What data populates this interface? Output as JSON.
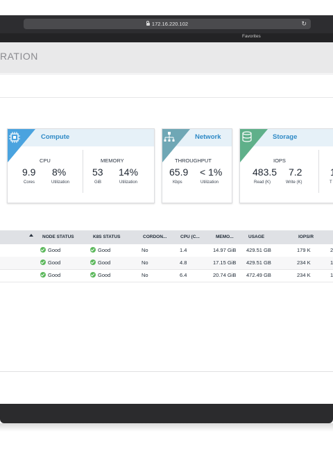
{
  "browser": {
    "url": "172.16.220.102",
    "favorites_label": "Favorites"
  },
  "app": {
    "title": "RATION"
  },
  "cards": {
    "compute": {
      "title": "Compute",
      "cpu": {
        "label": "CPU",
        "cores_value": "9.9",
        "cores_unit": "Cores",
        "util_value": "8%",
        "util_unit": "Utilization"
      },
      "memory": {
        "label": "MEMORY",
        "gib_value": "53",
        "gib_unit": "GiB",
        "util_value": "14%",
        "util_unit": "Utilization"
      }
    },
    "network": {
      "title": "Network",
      "throughput": {
        "label": "THROUGHPUT",
        "kbps_value": "65.9",
        "kbps_unit": "Kbps",
        "util_value": "< 1%",
        "util_unit": "Utilization"
      }
    },
    "storage": {
      "title": "Storage",
      "iops": {
        "label": "IOPS",
        "read_value": "483.5",
        "read_unit": "Read (K)",
        "write_value": "7.2",
        "write_unit": "Write (K)"
      },
      "extra_value": "1",
      "extra_unit": "T"
    }
  },
  "table": {
    "headers": [
      "NODE STATUS",
      "K8S STATUS",
      "CORDON...",
      "CPU (C...",
      "MEMO...",
      "USAGE",
      "IOPS/R",
      ""
    ],
    "rows": [
      {
        "node_status": "Good",
        "k8s_status": "Good",
        "cordoned": "No",
        "cpu": "1.4",
        "memory": "14.97 GiB",
        "usage": "429.51 GB",
        "iops_r": "179 K",
        "extra": "2"
      },
      {
        "node_status": "Good",
        "k8s_status": "Good",
        "cordoned": "No",
        "cpu": "4.8",
        "memory": "17.15 GiB",
        "usage": "429.51 GB",
        "iops_r": "234 K",
        "extra": "1"
      },
      {
        "node_status": "Good",
        "k8s_status": "Good",
        "cordoned": "No",
        "cpu": "6.4",
        "memory": "20.74 GiB",
        "usage": "472.49 GB",
        "iops_r": "234 K",
        "extra": "1"
      }
    ]
  },
  "colors": {
    "accent": "#2f8ac6",
    "compute_accent": "#4aa3df",
    "network_accent": "#6fa7b5",
    "storage_accent": "#5fb08a",
    "status_good": "#5cb85c"
  }
}
